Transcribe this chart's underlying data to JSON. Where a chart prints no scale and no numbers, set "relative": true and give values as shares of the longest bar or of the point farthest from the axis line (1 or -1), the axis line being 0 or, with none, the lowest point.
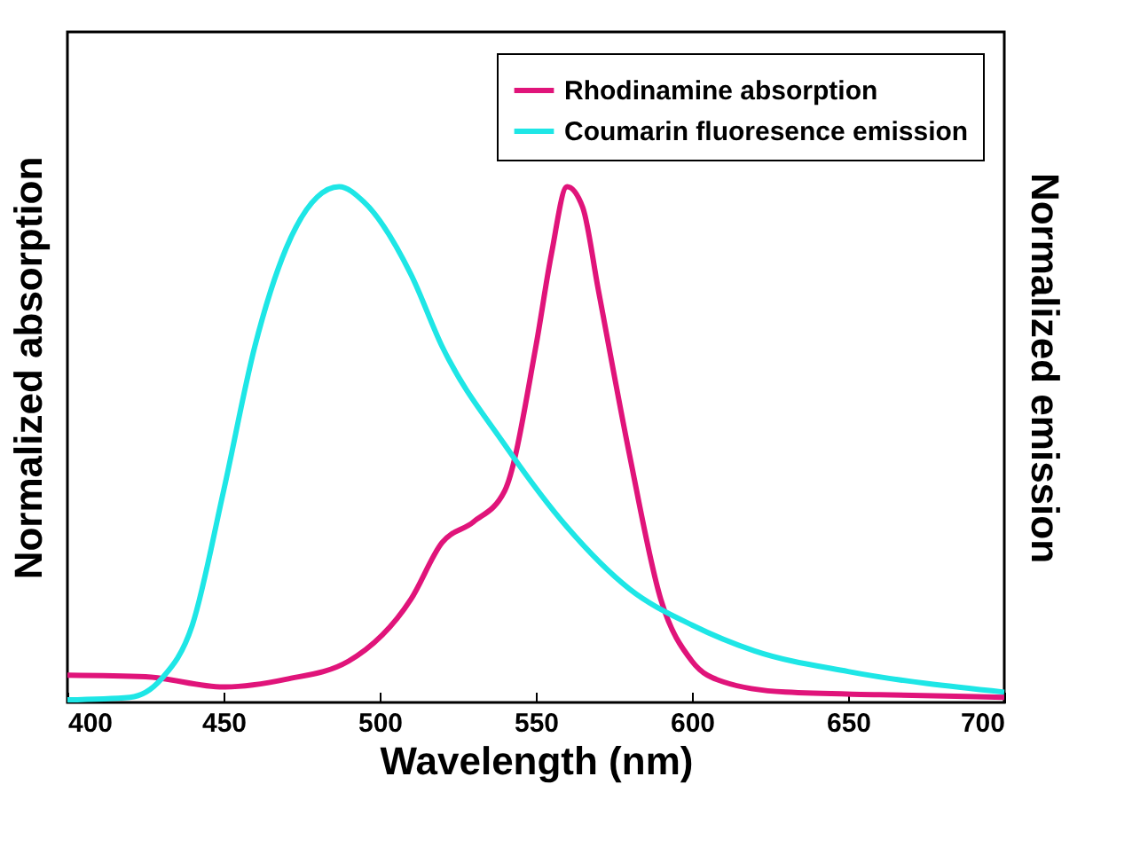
{
  "chart_data": {
    "type": "line",
    "relative": true,
    "xlabel": "Wavelength (nm)",
    "ylabel": "Normalized absorption",
    "y2label": "Normalized emission",
    "xlim": [
      400,
      700
    ],
    "xticks": [
      400,
      450,
      500,
      550,
      600,
      650,
      700
    ],
    "legend": "top right",
    "grid": false,
    "line_style": "solid",
    "series": [
      {
        "name": "Rhodinamine absorption",
        "color": "#e0147a",
        "x": [
          400,
          425,
          450,
          470,
          490,
          510,
          520,
          530,
          540,
          550,
          555,
          560,
          565,
          570,
          580,
          590,
          600,
          610,
          630,
          660,
          700
        ],
        "values": [
          0.053,
          0.05,
          0.03,
          0.045,
          0.08,
          0.2,
          0.31,
          0.35,
          0.41,
          0.69,
          0.87,
          1,
          0.96,
          0.8,
          0.48,
          0.2,
          0.08,
          0.04,
          0.02,
          0.015,
          0.01
        ]
      },
      {
        "name": "Coumarin fluoresence emission",
        "color": "#1ee6e6",
        "axis": "y2",
        "x": [
          400,
          420,
          430,
          440,
          450,
          460,
          470,
          480,
          487,
          495,
          510,
          520,
          540,
          560,
          580,
          600,
          620,
          650,
          700
        ],
        "values": [
          0.005,
          0.01,
          0.045,
          0.15,
          0.41,
          0.69,
          0.88,
          0.98,
          1,
          0.97,
          0.83,
          0.69,
          0.5,
          0.34,
          0.22,
          0.15,
          0.1,
          0.06,
          0.02
        ]
      }
    ]
  }
}
